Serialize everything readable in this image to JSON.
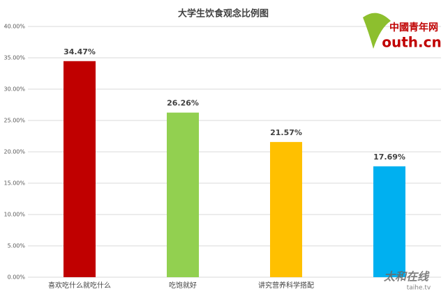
{
  "chart_data": {
    "type": "bar",
    "title": "大学生饮食观念比例图",
    "categories": [
      "喜欢吃什么就吃什么",
      "吃饱就好",
      "讲究营养科学搭配",
      null
    ],
    "values": [
      34.47,
      26.26,
      21.57,
      17.69
    ],
    "value_labels": [
      "34.47%",
      "26.26%",
      "21.57%",
      "17.69%"
    ],
    "colors": [
      "#c00000",
      "#92d050",
      "#ffc000",
      "#00b0f0"
    ],
    "ylim": [
      0,
      40
    ],
    "yticks": [
      {
        "value": 0,
        "label": "0.00%"
      },
      {
        "value": 5,
        "label": "5.00%"
      },
      {
        "value": 10,
        "label": "10.00%"
      },
      {
        "value": 15,
        "label": "15.00%"
      },
      {
        "value": 20,
        "label": "20.00%"
      },
      {
        "value": 25,
        "label": "25.00%"
      },
      {
        "value": 30,
        "label": "30.00%"
      },
      {
        "value": 35,
        "label": "35.00%"
      },
      {
        "value": 40,
        "label": "40.00%"
      }
    ],
    "grid": true
  },
  "logo": {
    "name": "中國青年网",
    "site": "outh.cn"
  },
  "watermark": {
    "name": "太和在线",
    "site": "taihe.tv"
  }
}
